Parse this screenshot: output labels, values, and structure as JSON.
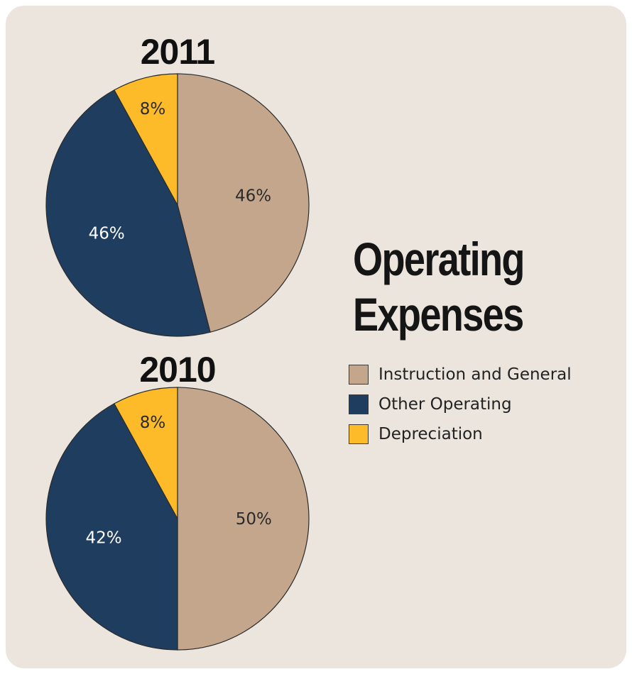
{
  "title": {
    "line1": "Operating",
    "line2": "Expenses"
  },
  "colors": {
    "instruction": "#c4a68c",
    "other": "#1f3d5f",
    "depreciation": "#fdbb2a",
    "panel": "#ebe5de"
  },
  "legend": [
    {
      "label": "Instruction and General",
      "color": "#c4a68c"
    },
    {
      "label": "Other Operating",
      "color": "#1f3d5f"
    },
    {
      "label": "Depreciation",
      "color": "#fdbb2a"
    }
  ],
  "chart_data": [
    {
      "type": "pie",
      "title": "2011",
      "slices": [
        {
          "name": "Instruction and General",
          "value": 46,
          "label": "46%",
          "color": "#c4a68c"
        },
        {
          "name": "Other Operating",
          "value": 46,
          "label": "46%",
          "color": "#1f3d5f"
        },
        {
          "name": "Depreciation",
          "value": 8,
          "label": "8%",
          "color": "#fdbb2a"
        }
      ]
    },
    {
      "type": "pie",
      "title": "2010",
      "slices": [
        {
          "name": "Instruction and General",
          "value": 50,
          "label": "50%",
          "color": "#c4a68c"
        },
        {
          "name": "Other Operating",
          "value": 42,
          "label": "42%",
          "color": "#1f3d5f"
        },
        {
          "name": "Depreciation",
          "value": 8,
          "label": "8%",
          "color": "#fdbb2a"
        }
      ]
    }
  ]
}
